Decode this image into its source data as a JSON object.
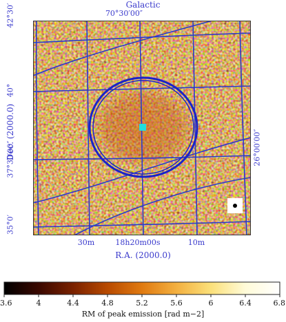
{
  "figure": {
    "top_axis_title": "Galactic",
    "top_tick": "70°30′00″",
    "left_axis_title": "Dec.  (2000.0)",
    "left_ticks": [
      "42°30′",
      "40°",
      "37°30′00″",
      "35°0′"
    ],
    "right_tick": "26°00′00″",
    "bottom_ticks": [
      "30m",
      "18h20m00s",
      "10m"
    ],
    "bottom_axis_title": "R.A. (2000.0)"
  },
  "colorbar": {
    "label": "RM of peak emission [rad m−2]",
    "ticks": [
      "3.6",
      "4",
      "4.4",
      "4.8",
      "5.2",
      "5.6",
      "6",
      "6.4",
      "6.8"
    ],
    "range": [
      3.6,
      6.8
    ],
    "colormap": [
      "#000000",
      "#3a0800",
      "#7a2200",
      "#b84a00",
      "#e07a10",
      "#f3b040",
      "#fbe07a",
      "#fffbd8",
      "#ffffff"
    ]
  },
  "overlay": {
    "grid_color": "#2a3acc",
    "ring_color": "#1a24c8",
    "center_marker_color": "#22dddd"
  },
  "beam_marker": {
    "box_color": "#ffffff",
    "dot_color": "#000000"
  }
}
